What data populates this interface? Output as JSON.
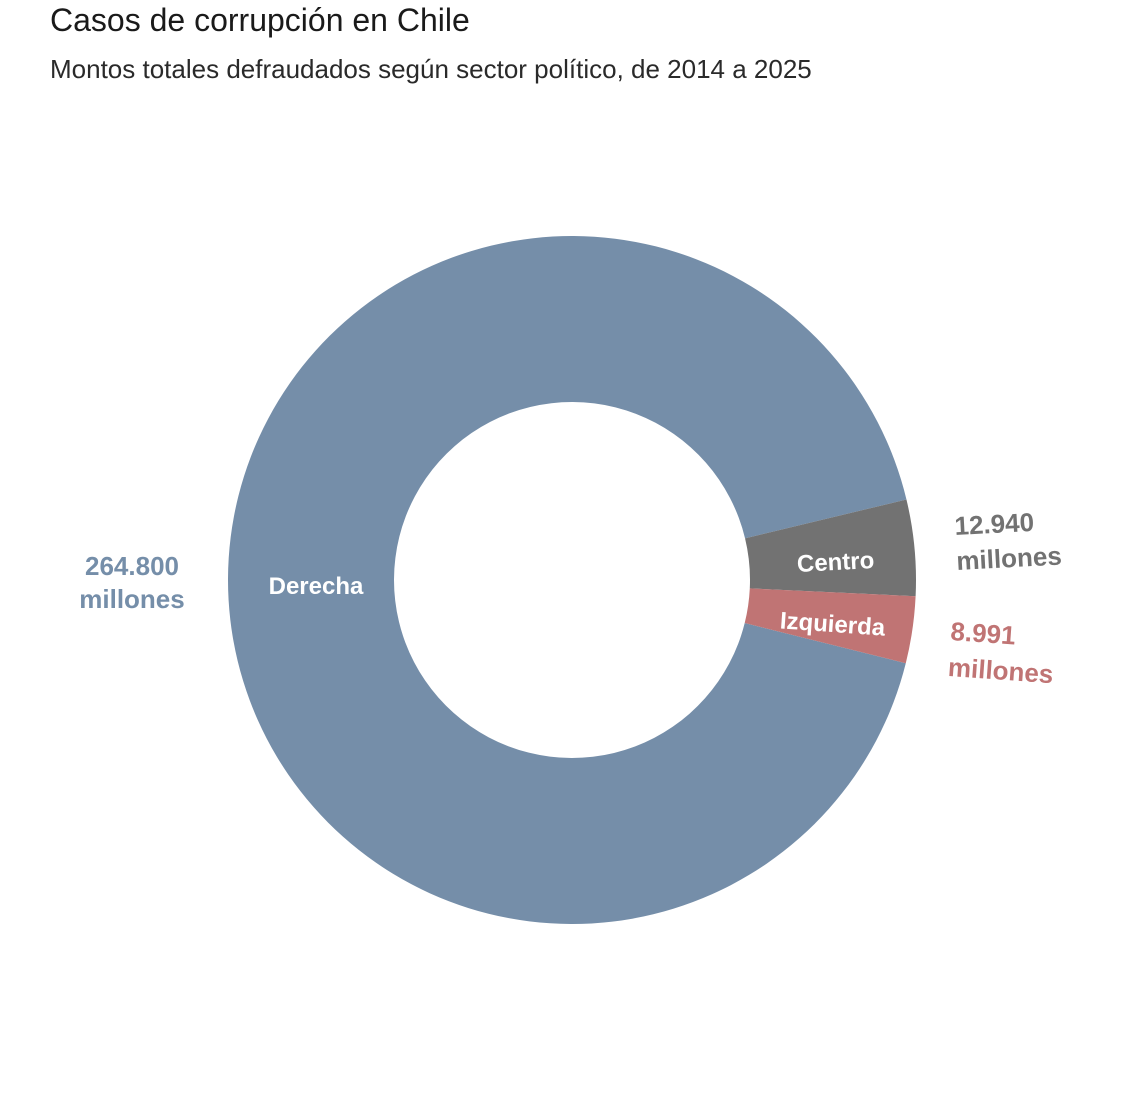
{
  "chart_data": {
    "type": "pie",
    "style": "donut",
    "title": "Casos de corrupción en Chile",
    "subtitle": "Montos totales defraudados según sector político, de 2014 a 2025",
    "unit": "millones",
    "legend": "none",
    "slices": [
      {
        "label": "Derecha",
        "value": 264800,
        "value_text": "264.800",
        "unit_text": "millones",
        "color": "#758ea9"
      },
      {
        "label": "Centro",
        "value": 12940,
        "value_text": "12.940",
        "unit_text": "millones",
        "color": "#727272"
      },
      {
        "label": "Izquierda",
        "value": 8991,
        "value_text": "8.991",
        "unit_text": "millones",
        "color": "#c07474"
      }
    ]
  }
}
